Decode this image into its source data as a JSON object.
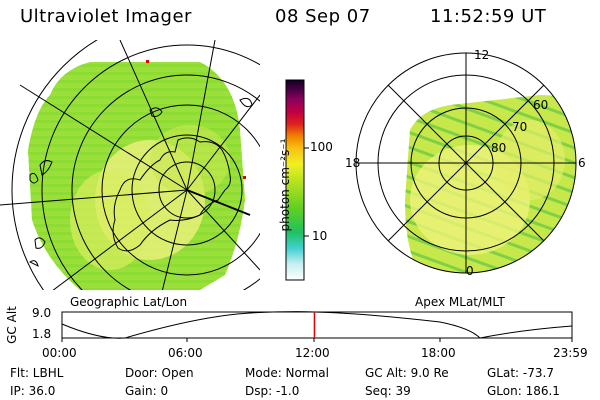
{
  "header": {
    "title": "Ultraviolet Imager",
    "date": "08 Sep 07",
    "time": "11:52:59 UT"
  },
  "colorbar": {
    "unit_label": "photon cm⁻²s⁻¹",
    "tick_100": "100",
    "tick_10": "10"
  },
  "left_map": {
    "caption": "Geographic Lat/Lon"
  },
  "right_map": {
    "caption": "Apex MLat/MLT",
    "mlt_top": "12",
    "mlt_left": "18",
    "mlt_right": "6",
    "mlt_bottom": "0",
    "lat_60": "60",
    "lat_70": "70",
    "lat_80": "80"
  },
  "altitude_plot": {
    "ylabel": "GC Alt",
    "ytick_high": "9.0",
    "ytick_low": "1.8",
    "xticks": [
      "00:00",
      "06:00",
      "12:00",
      "18:00",
      "23:59"
    ],
    "marker_fraction": 0.495
  },
  "info": {
    "filter": "Flt: LBHL",
    "ip": "IP: 36.0",
    "door": "Door: Open",
    "gain": "Gain:  0",
    "mode": "Mode: Normal",
    "dsp": "Dsp:   -1.0",
    "gc_alt": "GC Alt: 9.0 Re",
    "seq": "Seq: 39",
    "glat": "GLat: -73.7",
    "glon": "GLon: 186.1"
  }
}
